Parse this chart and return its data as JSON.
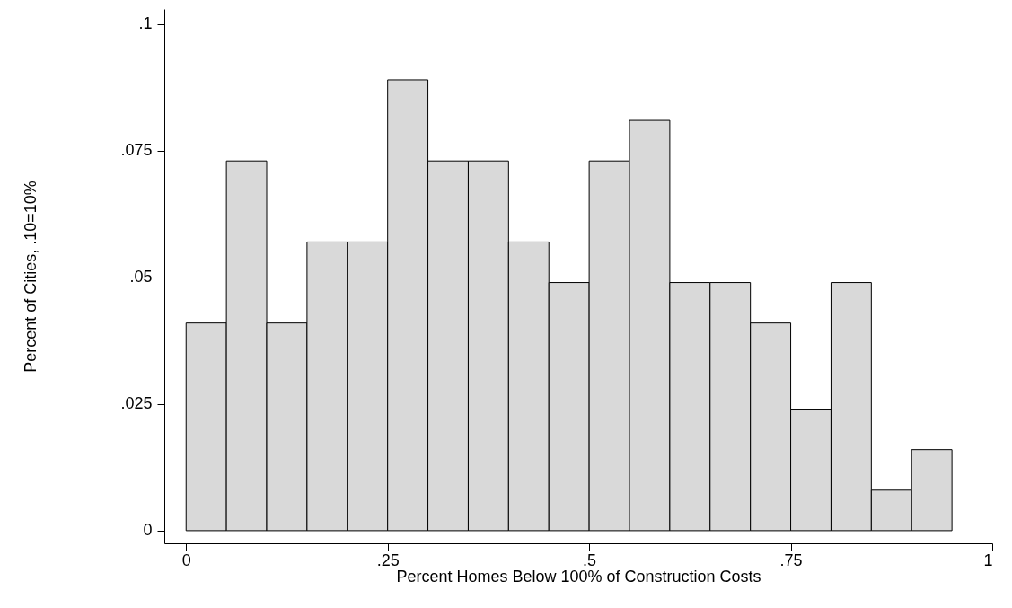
{
  "chart_data": {
    "type": "histogram",
    "xlabel": "Percent Homes Below 100% of Construction Costs",
    "ylabel": "Percent of Cities, .10=10%",
    "bins": [
      0,
      0.05,
      0.1,
      0.15,
      0.2,
      0.25,
      0.3,
      0.35,
      0.4,
      0.45,
      0.5,
      0.55,
      0.6,
      0.65,
      0.7,
      0.75,
      0.8,
      0.85,
      0.9,
      0.95
    ],
    "values": [
      0.041,
      0.073,
      0.041,
      0.057,
      0.057,
      0.089,
      0.073,
      0.073,
      0.057,
      0.049,
      0.073,
      0.081,
      0.049,
      0.049,
      0.041,
      0.024,
      0.049,
      0.008,
      0.016
    ],
    "color": "#d9d9d9",
    "xlim": [
      -0.027,
      1.0
    ],
    "xticks": [
      0,
      {
        "value": 0.25,
        "label": ".25"
      },
      {
        "value": 0.5,
        "label": ".5"
      },
      {
        "value": 0.75,
        "label": ".75"
      },
      1
    ],
    "ylim": [
      -0.0025,
      0.103
    ],
    "yticks": [
      0,
      {
        "value": 0.025,
        "label": ".025"
      },
      {
        "value": 0.05,
        "label": ".05"
      },
      {
        "value": 0.075,
        "label": ".075"
      },
      {
        "value": 0.1,
        "label": ".1"
      }
    ],
    "grid": false
  }
}
